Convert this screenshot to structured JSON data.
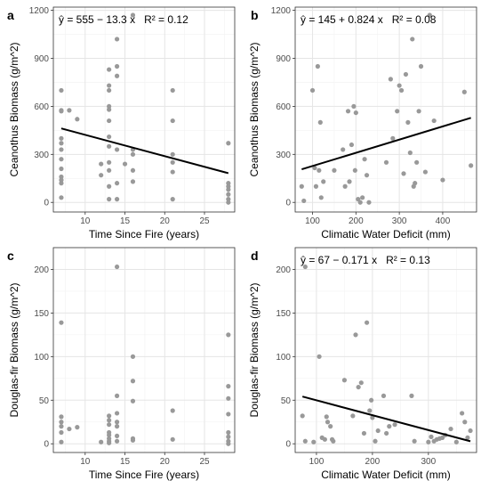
{
  "chart_data": [
    {
      "type": "scatter",
      "panel": "a",
      "equation": "ŷ = 555 − 13.3 x   R² = 0.12",
      "xlabel": "Time Since Fire (years)",
      "ylabel": "Ceanothus Biomass (g/m^2)",
      "xlim": [
        6,
        28.8
      ],
      "ylim": [
        -60,
        1220
      ],
      "xticks": [
        10,
        15,
        20,
        25
      ],
      "yticks": [
        0,
        300,
        600,
        900,
        1200
      ],
      "points": [
        [
          7,
          700
        ],
        [
          7,
          575
        ],
        [
          7,
          570
        ],
        [
          7,
          400
        ],
        [
          7,
          370
        ],
        [
          7,
          330
        ],
        [
          7,
          270
        ],
        [
          7,
          210
        ],
        [
          7,
          160
        ],
        [
          7,
          140
        ],
        [
          7,
          120
        ],
        [
          7,
          30
        ],
        [
          8,
          575
        ],
        [
          9,
          520
        ],
        [
          12,
          240
        ],
        [
          12,
          170
        ],
        [
          13,
          830
        ],
        [
          13,
          730
        ],
        [
          13,
          700
        ],
        [
          13,
          600
        ],
        [
          13,
          580
        ],
        [
          13,
          510
        ],
        [
          13,
          410
        ],
        [
          13,
          350
        ],
        [
          13,
          250
        ],
        [
          13,
          200
        ],
        [
          13,
          100
        ],
        [
          13,
          20
        ],
        [
          14,
          1020
        ],
        [
          14,
          850
        ],
        [
          14,
          790
        ],
        [
          14,
          330
        ],
        [
          14,
          120
        ],
        [
          14,
          20
        ],
        [
          15,
          240
        ],
        [
          16,
          1170
        ],
        [
          16,
          330
        ],
        [
          16,
          300
        ],
        [
          16,
          200
        ],
        [
          16,
          130
        ],
        [
          21,
          700
        ],
        [
          21,
          510
        ],
        [
          21,
          300
        ],
        [
          21,
          250
        ],
        [
          21,
          190
        ],
        [
          21,
          20
        ],
        [
          28,
          370
        ],
        [
          28,
          120
        ],
        [
          28,
          100
        ],
        [
          28,
          80
        ],
        [
          28,
          50
        ],
        [
          28,
          20
        ],
        [
          28,
          0
        ]
      ],
      "fit": {
        "intercept": 555,
        "slope": -13.3,
        "x_range": [
          7,
          28
        ]
      }
    },
    {
      "type": "scatter",
      "panel": "b",
      "equation": "ŷ = 145 + 0.824 x   R² = 0.08",
      "xlabel": "Climatic Water Deficit (mm)",
      "ylabel": "Ceanothus Biomass (g/m^2)",
      "xlim": [
        60,
        478
      ],
      "ylim": [
        -60,
        1220
      ],
      "xticks": [
        100,
        200,
        300,
        400
      ],
      "yticks": [
        0,
        300,
        600,
        900,
        1200
      ],
      "points": [
        [
          75,
          100
        ],
        [
          80,
          10
        ],
        [
          100,
          700
        ],
        [
          105,
          215
        ],
        [
          108,
          100
        ],
        [
          112,
          850
        ],
        [
          115,
          200
        ],
        [
          118,
          500
        ],
        [
          120,
          30
        ],
        [
          125,
          130
        ],
        [
          150,
          200
        ],
        [
          170,
          330
        ],
        [
          175,
          100
        ],
        [
          182,
          570
        ],
        [
          185,
          130
        ],
        [
          190,
          360
        ],
        [
          195,
          600
        ],
        [
          198,
          200
        ],
        [
          200,
          560
        ],
        [
          205,
          20
        ],
        [
          210,
          0
        ],
        [
          215,
          30
        ],
        [
          220,
          270
        ],
        [
          225,
          170
        ],
        [
          230,
          0
        ],
        [
          270,
          250
        ],
        [
          280,
          770
        ],
        [
          285,
          400
        ],
        [
          295,
          570
        ],
        [
          300,
          730
        ],
        [
          305,
          700
        ],
        [
          310,
          180
        ],
        [
          315,
          800
        ],
        [
          320,
          500
        ],
        [
          325,
          310
        ],
        [
          330,
          1020
        ],
        [
          333,
          100
        ],
        [
          336,
          120
        ],
        [
          340,
          250
        ],
        [
          345,
          570
        ],
        [
          350,
          850
        ],
        [
          360,
          190
        ],
        [
          370,
          1170
        ],
        [
          380,
          510
        ],
        [
          400,
          140
        ],
        [
          450,
          690
        ],
        [
          465,
          230
        ]
      ],
      "fit": {
        "intercept": 145,
        "slope": 0.824,
        "x_range": [
          75,
          465
        ]
      }
    },
    {
      "type": "scatter",
      "panel": "c",
      "equation": "",
      "xlabel": "Time Since Fire (years)",
      "ylabel": "Douglas-fir Biomass (g/m^2)",
      "xlim": [
        6,
        28.8
      ],
      "ylim": [
        -10,
        225
      ],
      "xticks": [
        10,
        15,
        20,
        25
      ],
      "yticks": [
        0,
        50,
        100,
        150,
        200
      ],
      "points": [
        [
          7,
          139
        ],
        [
          7,
          31
        ],
        [
          7,
          25
        ],
        [
          7,
          20
        ],
        [
          7,
          13
        ],
        [
          7,
          2
        ],
        [
          8,
          17
        ],
        [
          9,
          19
        ],
        [
          12,
          2
        ],
        [
          13,
          32
        ],
        [
          13,
          27
        ],
        [
          13,
          22
        ],
        [
          13,
          13
        ],
        [
          13,
          10
        ],
        [
          13,
          6
        ],
        [
          13,
          3
        ],
        [
          13,
          1
        ],
        [
          14,
          203
        ],
        [
          14,
          55
        ],
        [
          14,
          35
        ],
        [
          14,
          25
        ],
        [
          14,
          20
        ],
        [
          14,
          9
        ],
        [
          14,
          3
        ],
        [
          16,
          100
        ],
        [
          16,
          72
        ],
        [
          16,
          49
        ],
        [
          16,
          6
        ],
        [
          16,
          4
        ],
        [
          21,
          38
        ],
        [
          21,
          5
        ],
        [
          28,
          125
        ],
        [
          28,
          66
        ],
        [
          28,
          52
        ],
        [
          28,
          34
        ],
        [
          28,
          13
        ],
        [
          28,
          8
        ],
        [
          28,
          3
        ],
        [
          28,
          0
        ]
      ]
    },
    {
      "type": "scatter",
      "panel": "d",
      "equation": "ŷ = 67 − 0.171 x   R² = 0.13",
      "xlabel": "Climatic Water Deficit (mm)",
      "ylabel": "Douglas-fir Biomass (g/m^2)",
      "xlim": [
        62,
        386
      ],
      "ylim": [
        -10,
        225
      ],
      "xticks": [
        100,
        200,
        300
      ],
      "yticks": [
        0,
        50,
        100,
        150,
        200
      ],
      "points": [
        [
          75,
          32
        ],
        [
          80,
          203
        ],
        [
          80,
          3
        ],
        [
          95,
          2
        ],
        [
          105,
          100
        ],
        [
          110,
          7
        ],
        [
          115,
          5
        ],
        [
          118,
          31
        ],
        [
          120,
          25
        ],
        [
          125,
          20
        ],
        [
          128,
          5
        ],
        [
          130,
          3
        ],
        [
          150,
          73
        ],
        [
          165,
          32
        ],
        [
          170,
          125
        ],
        [
          175,
          65
        ],
        [
          180,
          70
        ],
        [
          185,
          12
        ],
        [
          190,
          139
        ],
        [
          195,
          38
        ],
        [
          198,
          50
        ],
        [
          200,
          30
        ],
        [
          205,
          3
        ],
        [
          210,
          15
        ],
        [
          220,
          55
        ],
        [
          225,
          12
        ],
        [
          230,
          20
        ],
        [
          240,
          22
        ],
        [
          270,
          55
        ],
        [
          275,
          3
        ],
        [
          300,
          2
        ],
        [
          305,
          8
        ],
        [
          310,
          3
        ],
        [
          315,
          5
        ],
        [
          320,
          6
        ],
        [
          325,
          7
        ],
        [
          330,
          10
        ],
        [
          340,
          17
        ],
        [
          350,
          2
        ],
        [
          360,
          35
        ],
        [
          365,
          25
        ],
        [
          370,
          7
        ],
        [
          375,
          15
        ]
      ],
      "fit": {
        "intercept": 67,
        "slope": -0.171,
        "x_range": [
          75,
          375
        ]
      }
    }
  ]
}
